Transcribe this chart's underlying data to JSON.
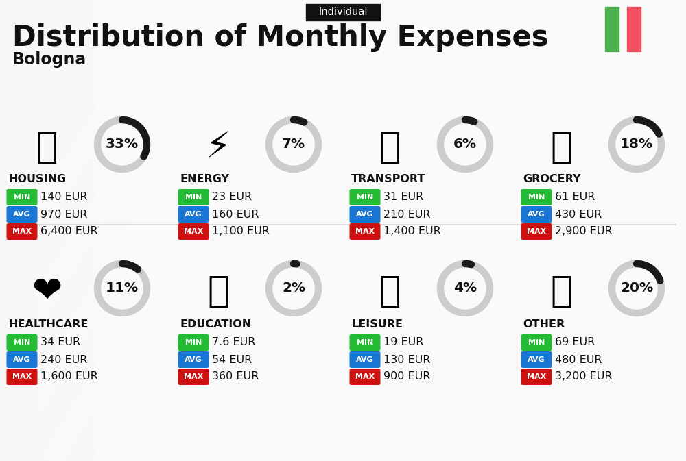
{
  "title": "Distribution of Monthly Expenses",
  "subtitle": "Bologna",
  "tag": "Individual",
  "bg_color": "#eeeeee",
  "categories": [
    {
      "name": "HOUSING",
      "pct": 33,
      "min": "140 EUR",
      "avg": "970 EUR",
      "max": "6,400 EUR",
      "col": 0,
      "row": 0
    },
    {
      "name": "ENERGY",
      "pct": 7,
      "min": "23 EUR",
      "avg": "160 EUR",
      "max": "1,100 EUR",
      "col": 1,
      "row": 0
    },
    {
      "name": "TRANSPORT",
      "pct": 6,
      "min": "31 EUR",
      "avg": "210 EUR",
      "max": "1,400 EUR",
      "col": 2,
      "row": 0
    },
    {
      "name": "GROCERY",
      "pct": 18,
      "min": "61 EUR",
      "avg": "430 EUR",
      "max": "2,900 EUR",
      "col": 3,
      "row": 0
    },
    {
      "name": "HEALTHCARE",
      "pct": 11,
      "min": "34 EUR",
      "avg": "240 EUR",
      "max": "1,600 EUR",
      "col": 0,
      "row": 1
    },
    {
      "name": "EDUCATION",
      "pct": 2,
      "min": "7.6 EUR",
      "avg": "54 EUR",
      "max": "360 EUR",
      "col": 1,
      "row": 1
    },
    {
      "name": "LEISURE",
      "pct": 4,
      "min": "19 EUR",
      "avg": "130 EUR",
      "max": "900 EUR",
      "col": 2,
      "row": 1
    },
    {
      "name": "OTHER",
      "pct": 20,
      "min": "69 EUR",
      "avg": "480 EUR",
      "max": "3,200 EUR",
      "col": 3,
      "row": 1
    }
  ],
  "min_color": "#22bb33",
  "avg_color": "#1976d2",
  "max_color": "#cc1111",
  "text_color": "#111111",
  "italy_green": "#4caf50",
  "italy_red": "#f05060",
  "donut_bg": "#cccccc",
  "donut_fg": "#1a1a1a",
  "stripe_color": "#ffffff",
  "tag_bg": "#111111",
  "tag_fg": "#ffffff",
  "divider_color": "#cccccc",
  "icon_emojis": [
    "🏢",
    "⚡",
    "🚌",
    "🛒",
    "❤",
    "🎓",
    "🛍",
    "💰"
  ]
}
